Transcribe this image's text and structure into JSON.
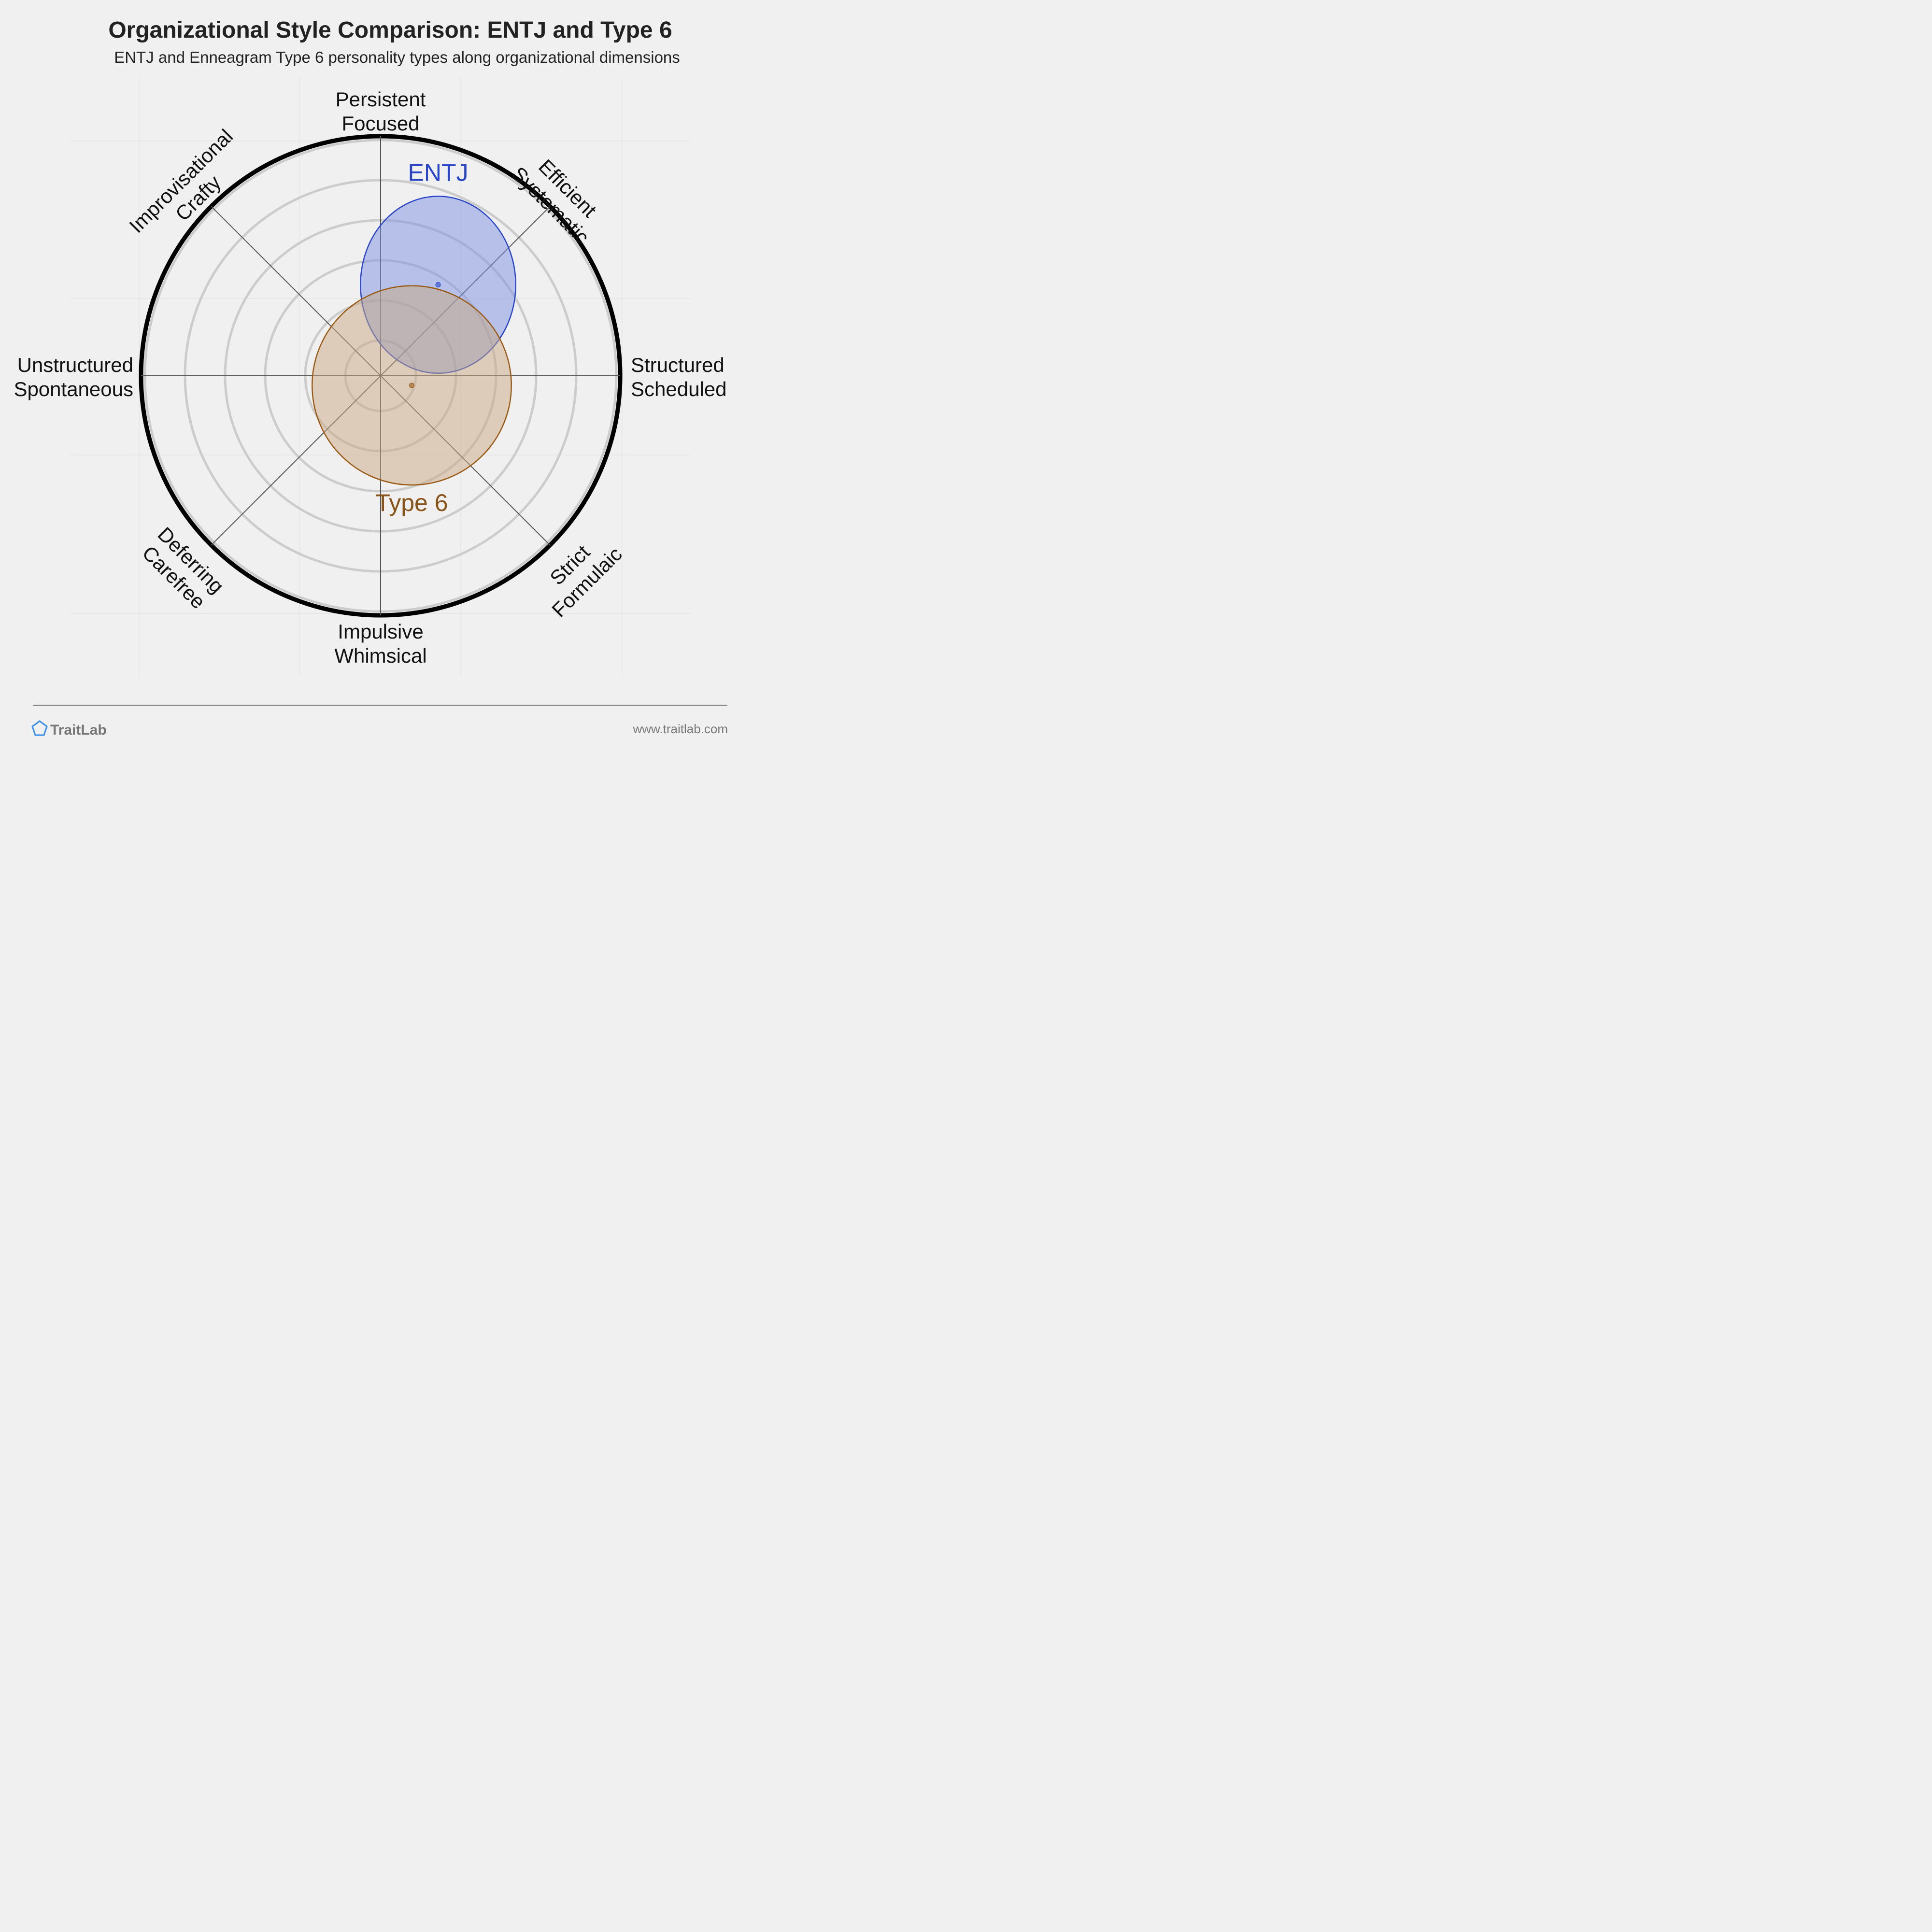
{
  "header": {
    "title": "Organizational Style Comparison: ENTJ and Type 6",
    "subtitle": "ENTJ and Enneagram Type 6 personality types along organizational dimensions"
  },
  "footer": {
    "brand": "TraitLab",
    "url": "www.traitlab.com",
    "logo_icon": "pentagon-icon"
  },
  "colors": {
    "background": "#f0f0f0",
    "ring": "#cccccc",
    "outer_ring": "#000000",
    "axis": "#555555",
    "entj_fill": "#7b8fe0",
    "entj_stroke": "#2a46c8",
    "entj_text": "#2a46c8",
    "type6_fill": "#c8a882",
    "type6_stroke": "#9a5a14",
    "type6_text": "#8a5418",
    "logo": "#3a8ee6"
  },
  "chart_data": {
    "type": "radar-bubble",
    "axes": [
      {
        "name": "north",
        "lines": [
          "Persistent",
          "Focused"
        ]
      },
      {
        "name": "northeast",
        "lines": [
          "Efficient",
          "Systematic"
        ]
      },
      {
        "name": "east",
        "lines": [
          "Structured",
          "Scheduled"
        ]
      },
      {
        "name": "southeast",
        "lines": [
          "Strict",
          "Formulaic"
        ]
      },
      {
        "name": "south",
        "lines": [
          "Impulsive",
          "Whimsical"
        ]
      },
      {
        "name": "southwest",
        "lines": [
          "Deferring",
          "Carefree"
        ]
      },
      {
        "name": "west",
        "lines": [
          "Unstructured",
          "Spontaneous"
        ]
      },
      {
        "name": "northwest",
        "lines": [
          "Improvisational",
          "Crafty"
        ]
      }
    ],
    "rings": 6,
    "range": [
      -1,
      1
    ],
    "series": [
      {
        "name": "ENTJ",
        "x": 0.24,
        "y": 0.38,
        "spread": 0.36
      },
      {
        "name": "Type 6",
        "x": 0.13,
        "y": -0.04,
        "spread": 0.42
      }
    ]
  }
}
